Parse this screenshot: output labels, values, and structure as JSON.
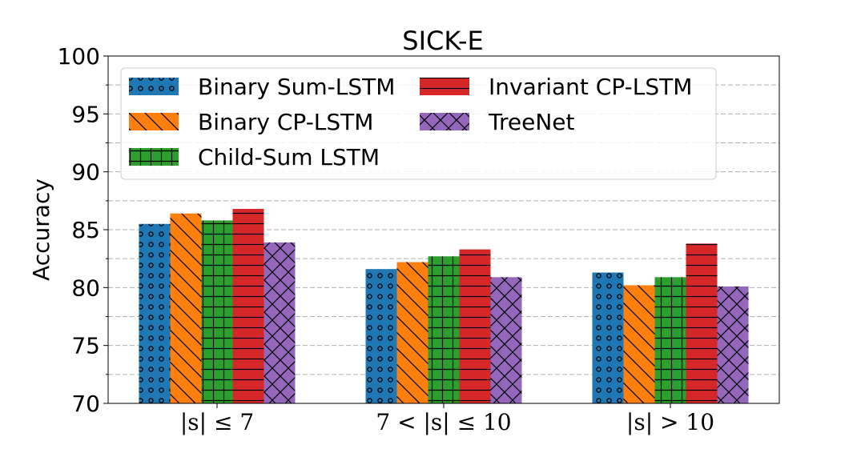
{
  "chart_data": {
    "type": "bar",
    "title": "SICK-E",
    "ylabel": "Accuracy",
    "xlabel": "",
    "ylim": [
      70,
      100
    ],
    "yticks": [
      70,
      75,
      80,
      85,
      90,
      95,
      100
    ],
    "grid": "horizontal dashed",
    "legend_position": "top",
    "categories": [
      "|s| ≤ 7",
      "7 < |s| ≤ 10",
      "|s| > 10"
    ],
    "series": [
      {
        "name": "Binary Sum-LSTM",
        "color": "#1f77b4",
        "hatch": "dots",
        "values": [
          85.5,
          81.6,
          81.3
        ]
      },
      {
        "name": "Binary CP-LSTM",
        "color": "#ff7f0e",
        "hatch": "backslash",
        "values": [
          86.4,
          82.2,
          80.2
        ]
      },
      {
        "name": "Child-Sum LSTM",
        "color": "#2ca02c",
        "hatch": "grid",
        "values": [
          85.8,
          82.7,
          80.9
        ]
      },
      {
        "name": "Invariant CP-LSTM",
        "color": "#d62728",
        "hatch": "horizontal",
        "values": [
          86.8,
          83.3,
          83.8
        ]
      },
      {
        "name": "TreeNet",
        "color": "#9467bd",
        "hatch": "cross",
        "values": [
          83.9,
          80.9,
          80.1
        ]
      }
    ]
  }
}
